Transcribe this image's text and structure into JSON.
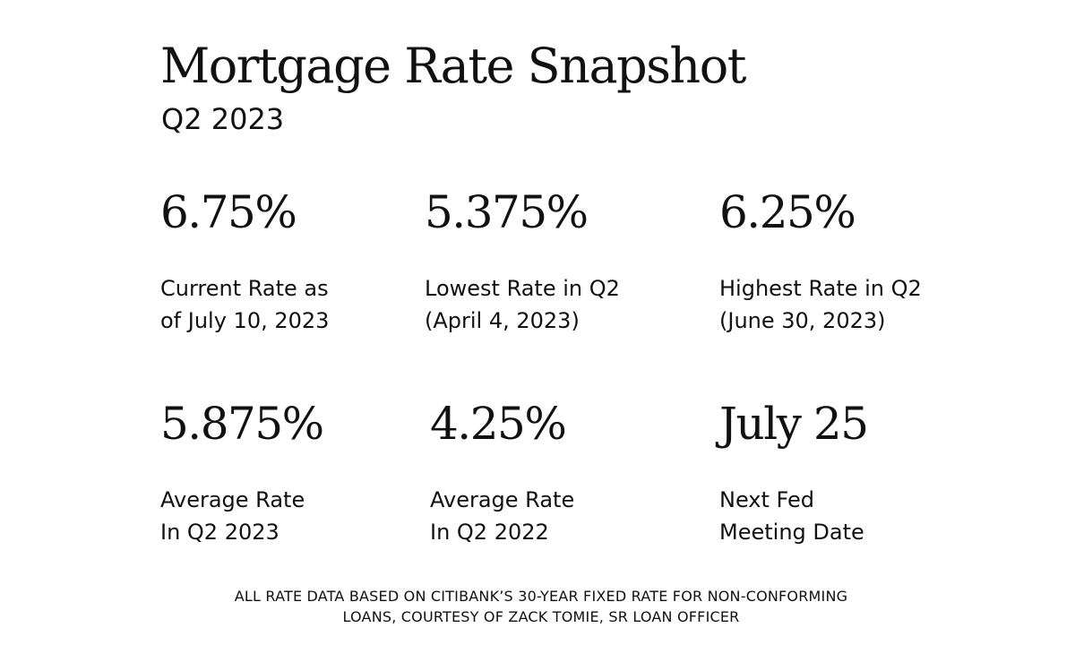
{
  "header": {
    "title": "Mortgage Rate Snapshot",
    "subtitle": "Q2 2023"
  },
  "stats": [
    {
      "value": "6.75%",
      "label_line1": "Current Rate as",
      "label_line2": "of July 10, 2023"
    },
    {
      "value": "5.375%",
      "label_line1": "Lowest Rate in Q2",
      "label_line2": "(April 4, 2023)"
    },
    {
      "value": "6.25%",
      "label_line1": "Highest Rate in Q2",
      "label_line2": "(June 30, 2023)"
    },
    {
      "value": "5.875%",
      "label_line1": "Average Rate",
      "label_line2": "In Q2 2023"
    },
    {
      "value": "4.25%",
      "label_line1": "Average Rate",
      "label_line2": "In Q2 2022"
    },
    {
      "value": "July 25",
      "label_line1": "Next Fed",
      "label_line2": "Meeting Date"
    }
  ],
  "footnote": {
    "line1": "ALL RATE DATA BASED ON CITIBANK’S 30-YEAR FIXED RATE FOR NON-CONFORMING",
    "line2": "LOANS, COURTESY OF ZACK TOMIE, SR LOAN OFFICER"
  },
  "colors": {
    "background": "#ffffff",
    "text": "#111111"
  }
}
